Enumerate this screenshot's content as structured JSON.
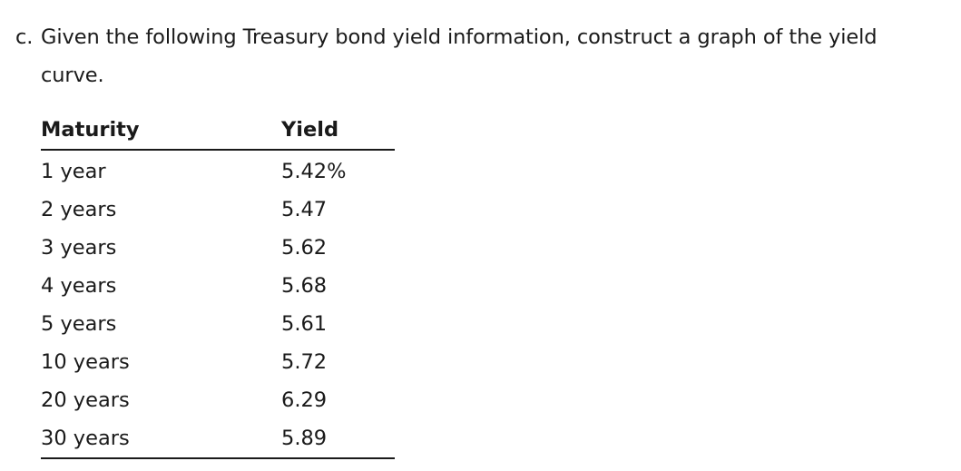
{
  "question": {
    "label": "c.",
    "line1": "Given the following Treasury bond yield information, construct a graph of the yield",
    "line2": "curve."
  },
  "table": {
    "headers": {
      "maturity": "Maturity",
      "yield": "Yield"
    },
    "rows": [
      {
        "maturity": "1 year",
        "yield": "5.42%"
      },
      {
        "maturity": "2 years",
        "yield": "5.47"
      },
      {
        "maturity": "3 years",
        "yield": "5.62"
      },
      {
        "maturity": "4 years",
        "yield": "5.68"
      },
      {
        "maturity": "5 years",
        "yield": "5.61"
      },
      {
        "maturity": "10 years",
        "yield": "5.72"
      },
      {
        "maturity": "20 years",
        "yield": "6.29"
      },
      {
        "maturity": "30 years",
        "yield": "5.89"
      }
    ]
  }
}
